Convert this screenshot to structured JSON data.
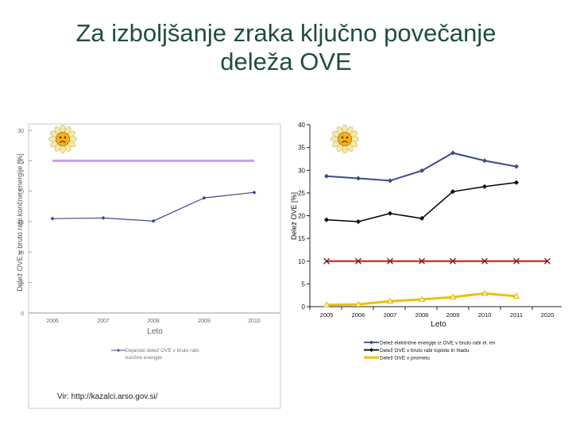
{
  "slide": {
    "title_line1": "Za izboljšanje zraka ključno povečanje",
    "title_line2": "deleža OVE",
    "source": "Vir: http://kazalci.arso.gov.si/"
  },
  "colors": {
    "title": "#1f4f3a",
    "target_line": "#c9a0ee",
    "electricity": "#3c4a8c",
    "heating": "#000000",
    "target_red": "#e02020",
    "transport": "#f0c000"
  },
  "icon_left": "sad-sun-icon",
  "icon_right": "sad-sun-icon",
  "chart_data": [
    {
      "type": "line",
      "xlabel": "Leto",
      "ylabel": "Delež OVE v bruto rabi končne energije [%]",
      "categories": [
        "2006",
        "2007",
        "2008",
        "2009",
        "2010"
      ],
      "ylim": [
        0,
        30
      ],
      "yticks": [
        "0",
        "5",
        "10",
        "15",
        "20",
        "25",
        "30"
      ],
      "series": [
        {
          "name": "Dejanski delež OVE v bruto rabi končne energije",
          "values": [
            15.5,
            15.6,
            15.1,
            18.9,
            19.8
          ]
        },
        {
          "name": "",
          "values": [
            25,
            25,
            25,
            25,
            25
          ]
        }
      ],
      "legend": "bottom",
      "grid": false
    },
    {
      "type": "line",
      "xlabel": "Leto",
      "ylabel": "Delež OVE [%]",
      "categories": [
        "2005",
        "2006",
        "2007",
        "2008",
        "2009",
        "2010",
        "2011",
        "2020"
      ],
      "ylim": [
        0,
        40
      ],
      "yticks": [
        "0",
        "5",
        "10",
        "15",
        "20",
        "25",
        "30",
        "35",
        "40"
      ],
      "series": [
        {
          "name": "Delež električne energije iz OVE v bruto rabi el. en",
          "values": [
            28.7,
            28.2,
            27.7,
            29.9,
            33.8,
            32.1,
            30.8,
            null
          ]
        },
        {
          "name": "Delež OVE v bruto rabi toplote in hladu",
          "values": [
            19.1,
            18.7,
            20.5,
            19.4,
            25.3,
            26.4,
            27.3,
            null
          ]
        },
        {
          "name": "",
          "values": [
            10,
            10,
            10,
            10,
            10,
            10,
            10,
            10
          ]
        },
        {
          "name": "Delež OVE v prometu",
          "values": [
            0.4,
            0.5,
            1.2,
            1.6,
            2.1,
            2.9,
            2.3,
            null
          ]
        }
      ],
      "legend": "bottom",
      "grid": false
    }
  ]
}
